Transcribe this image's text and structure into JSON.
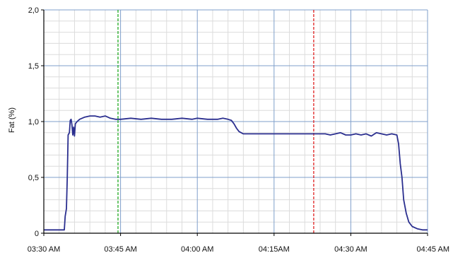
{
  "chart_data": {
    "type": "line",
    "title": "",
    "xlabel": "",
    "ylabel": "Fat (%)",
    "x_ticks": [
      "03:30 AM",
      "03:45 AM",
      "04:00 AM",
      "04:15AM",
      "04:30 AM",
      "04:45 AM"
    ],
    "y_ticks": [
      "0",
      "0,5",
      "1,0",
      "1,5",
      "2,0"
    ],
    "xlim": [
      "03:30",
      "04:45"
    ],
    "ylim": [
      0,
      2.0
    ],
    "grid": true,
    "legend": "none",
    "series": [
      {
        "color": "#2b2f8f",
        "points": [
          [
            "03:30:00",
            0.03
          ],
          [
            "03:31:00",
            0.03
          ],
          [
            "03:32:00",
            0.03
          ],
          [
            "03:33:00",
            0.03
          ],
          [
            "03:34:00",
            0.03
          ],
          [
            "03:34:10",
            0.15
          ],
          [
            "03:34:25",
            0.22
          ],
          [
            "03:34:35",
            0.5
          ],
          [
            "03:34:45",
            0.88
          ],
          [
            "03:35:00",
            0.9
          ],
          [
            "03:35:10",
            1.01
          ],
          [
            "03:35:20",
            1.02
          ],
          [
            "03:35:30",
            0.97
          ],
          [
            "03:35:40",
            0.88
          ],
          [
            "03:35:50",
            0.95
          ],
          [
            "03:36:00",
            0.87
          ],
          [
            "03:36:10",
            0.98
          ],
          [
            "03:36:30",
            1.0
          ],
          [
            "03:37:00",
            1.02
          ],
          [
            "03:38:00",
            1.04
          ],
          [
            "03:39:00",
            1.05
          ],
          [
            "03:40:00",
            1.05
          ],
          [
            "03:41:00",
            1.04
          ],
          [
            "03:42:00",
            1.05
          ],
          [
            "03:43:00",
            1.03
          ],
          [
            "03:44:00",
            1.02
          ],
          [
            "03:45:00",
            1.02
          ],
          [
            "03:47:00",
            1.03
          ],
          [
            "03:49:00",
            1.02
          ],
          [
            "03:51:00",
            1.03
          ],
          [
            "03:53:00",
            1.02
          ],
          [
            "03:55:00",
            1.02
          ],
          [
            "03:57:00",
            1.03
          ],
          [
            "03:59:00",
            1.02
          ],
          [
            "04:00:00",
            1.03
          ],
          [
            "04:02:00",
            1.02
          ],
          [
            "04:04:00",
            1.02
          ],
          [
            "04:05:00",
            1.03
          ],
          [
            "04:06:00",
            1.02
          ],
          [
            "04:06:40",
            1.01
          ],
          [
            "04:07:10",
            0.98
          ],
          [
            "04:07:40",
            0.94
          ],
          [
            "04:08:10",
            0.91
          ],
          [
            "04:09:00",
            0.89
          ],
          [
            "04:10:00",
            0.89
          ],
          [
            "04:15:00",
            0.89
          ],
          [
            "04:20:00",
            0.89
          ],
          [
            "04:25:00",
            0.89
          ],
          [
            "04:26:00",
            0.88
          ],
          [
            "04:27:00",
            0.89
          ],
          [
            "04:28:00",
            0.9
          ],
          [
            "04:29:00",
            0.88
          ],
          [
            "04:30:00",
            0.88
          ],
          [
            "04:31:00",
            0.89
          ],
          [
            "04:32:00",
            0.88
          ],
          [
            "04:33:00",
            0.89
          ],
          [
            "04:34:00",
            0.87
          ],
          [
            "04:35:00",
            0.9
          ],
          [
            "04:36:00",
            0.89
          ],
          [
            "04:37:00",
            0.88
          ],
          [
            "04:38:00",
            0.89
          ],
          [
            "04:39:00",
            0.88
          ],
          [
            "04:39:20",
            0.8
          ],
          [
            "04:39:40",
            0.62
          ],
          [
            "04:40:00",
            0.5
          ],
          [
            "04:40:20",
            0.3
          ],
          [
            "04:40:50",
            0.18
          ],
          [
            "04:41:20",
            0.1
          ],
          [
            "04:42:00",
            0.06
          ],
          [
            "04:43:00",
            0.04
          ],
          [
            "04:44:00",
            0.03
          ],
          [
            "04:45:00",
            0.03
          ]
        ]
      }
    ],
    "markers": [
      {
        "x": "03:44:30",
        "color": "#22aa22",
        "style": "dashed"
      },
      {
        "x": "04:22:45",
        "color": "#e02020",
        "style": "dashed"
      }
    ],
    "colors": {
      "major_grid": "#7f9fcb",
      "minor_grid": "#dcdcdc",
      "axis": "#000000"
    }
  }
}
